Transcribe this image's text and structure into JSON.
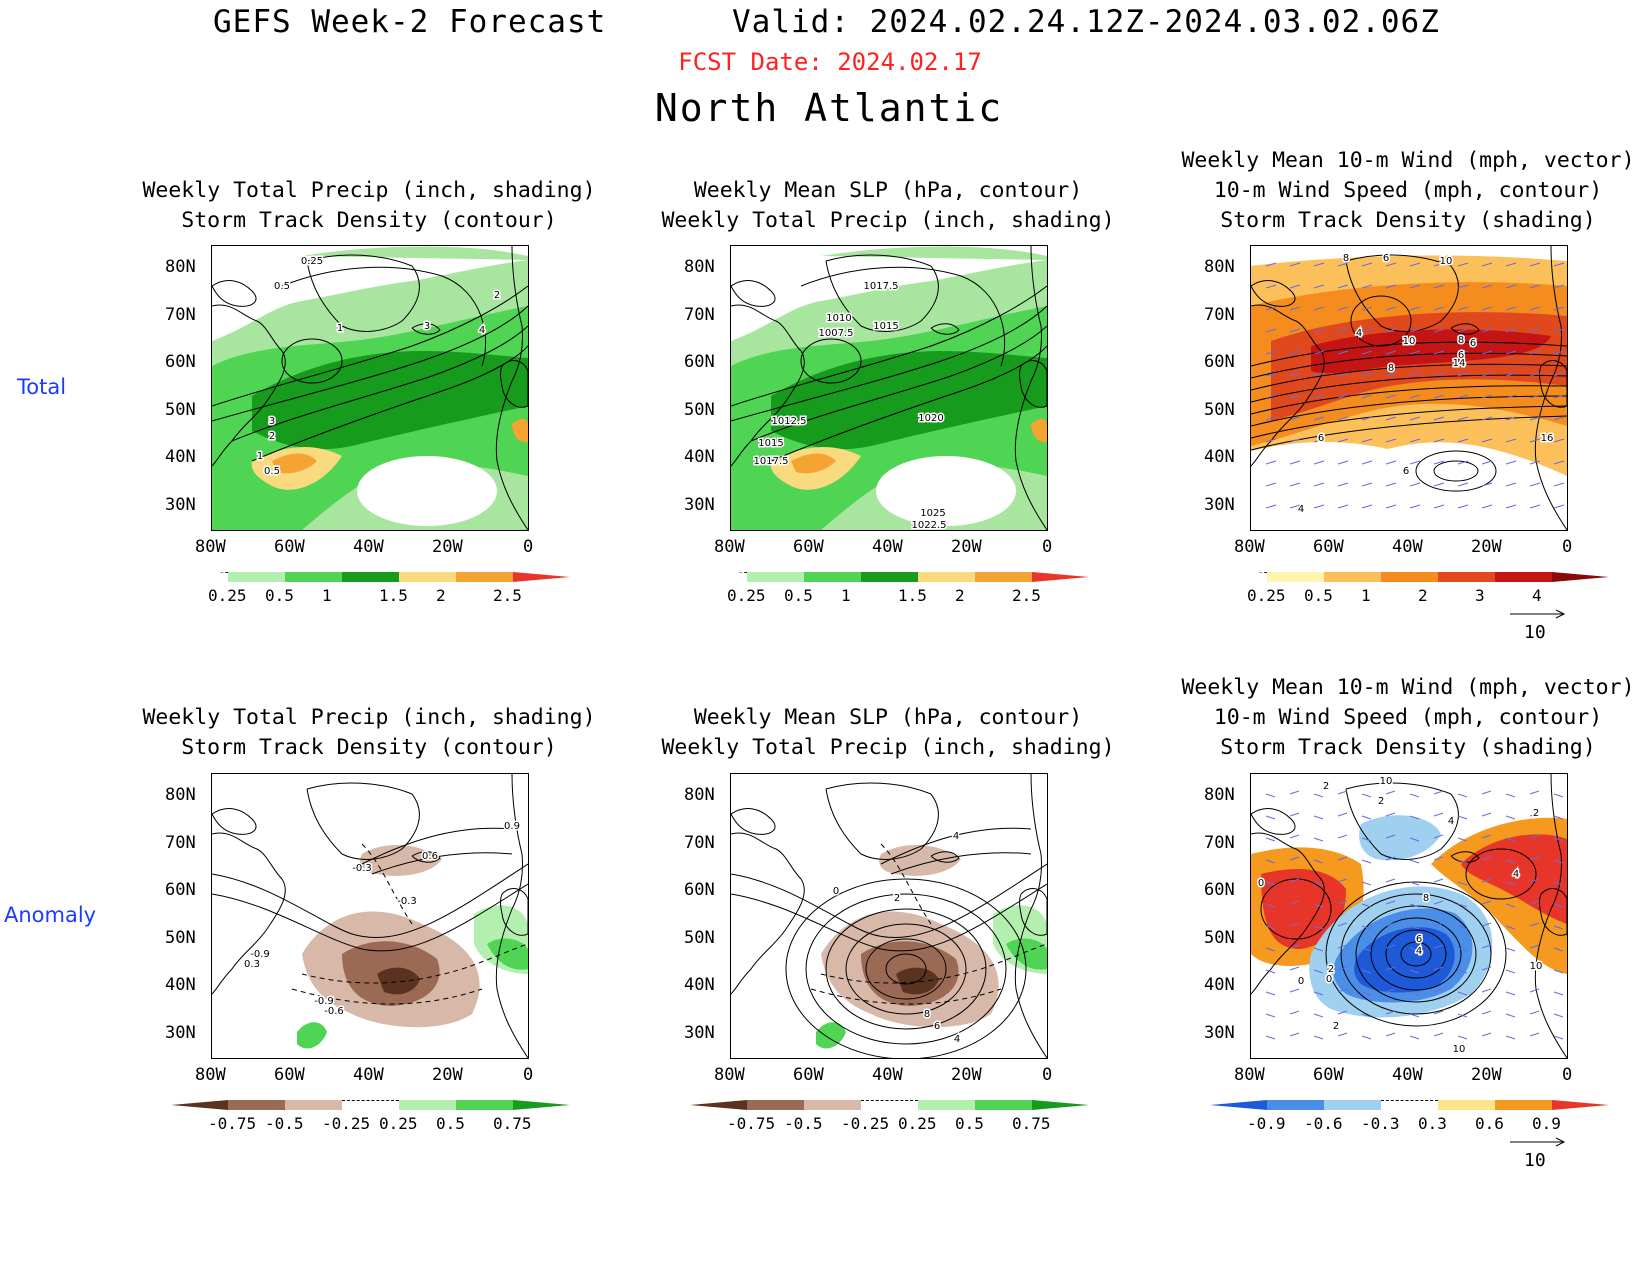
{
  "header": {
    "title": "GEFS Week-2 Forecast",
    "valid": "Valid: 2024.02.24.12Z-2024.03.02.06Z",
    "fcst_date": "FCST Date: 2024.02.17",
    "region": "North Atlantic"
  },
  "row_labels": {
    "total": "Total",
    "anomaly": "Anomaly"
  },
  "axes": {
    "lat_labels": [
      "80N",
      "70N",
      "60N",
      "50N",
      "40N",
      "30N"
    ],
    "lon_labels": [
      "80W",
      "60W",
      "40W",
      "20W",
      "0"
    ]
  },
  "panels": [
    {
      "id": "total-precip-storm",
      "title_lines": [
        "Weekly Total Precip (inch, shading)",
        "Storm Track Density (contour)"
      ],
      "contour_labels": [
        "0.25",
        "0.5",
        "1",
        "2",
        "3",
        "4",
        "3",
        "2",
        "1",
        "0.5"
      ],
      "colorbar": {
        "labels": [
          "0.25",
          "0.5",
          "1",
          "1.5",
          "2",
          "2.5"
        ],
        "colors": [
          "#ffffff",
          "#b3f0b0",
          "#4fd454",
          "#169b1c",
          "#f9da7f",
          "#f5a332",
          "#e8352a"
        ]
      }
    },
    {
      "id": "total-slp-precip",
      "title_lines": [
        "Weekly Mean SLP (hPa, contour)",
        "Weekly Total Precip (inch, shading)"
      ],
      "contour_labels": [
        "1017.5",
        "1010",
        "1015",
        "1007.5",
        "1012.5",
        "1015",
        "1017.5",
        "1020",
        "1025",
        "1022.5"
      ],
      "colorbar": {
        "labels": [
          "0.25",
          "0.5",
          "1",
          "1.5",
          "2",
          "2.5"
        ],
        "colors": [
          "#ffffff",
          "#b3f0b0",
          "#4fd454",
          "#169b1c",
          "#f9da7f",
          "#f5a332",
          "#e8352a"
        ]
      }
    },
    {
      "id": "total-wind-storm",
      "title_lines": [
        "Weekly Mean 10-m Wind (mph, vector)",
        "10-m Wind Speed (mph, contour)",
        "Storm Track Density (shading)"
      ],
      "contour_labels": [
        "8",
        "6",
        "10",
        "4",
        "10",
        "8",
        "6",
        "8",
        "14",
        "6",
        "6",
        "16",
        "6",
        "4"
      ],
      "colorbar": {
        "labels": [
          "0.25",
          "0.5",
          "1",
          "2",
          "3",
          "4"
        ],
        "colors": [
          "#ffffff",
          "#fff5b0",
          "#fbc05a",
          "#f58d1e",
          "#e0481e",
          "#c41414",
          "#8a0a0a"
        ]
      },
      "vector_ref": "10"
    },
    {
      "id": "anom-precip-storm",
      "title_lines": [
        "Weekly Total Precip (inch, shading)",
        "Storm Track Density (contour)"
      ],
      "contour_labels": [
        "0.9",
        "-0.3",
        "0.6",
        "-0.3",
        "-0.9",
        "0.3",
        "-0.9",
        "-0.6"
      ],
      "colorbar": {
        "labels": [
          "-0.75",
          "-0.5",
          "-0.25",
          "0.25",
          "0.5",
          "0.75"
        ],
        "colors": [
          "#5a3320",
          "#9b6a55",
          "#d8b8a8",
          "#ffffff",
          "#b3f0b0",
          "#4fd454",
          "#169b1c"
        ]
      }
    },
    {
      "id": "anom-slp-precip",
      "title_lines": [
        "Weekly Mean SLP (hPa, contour)",
        "Weekly Total Precip (inch, shading)"
      ],
      "contour_labels": [
        "4",
        "0",
        "2",
        "8",
        "6",
        "4"
      ],
      "colorbar": {
        "labels": [
          "-0.75",
          "-0.5",
          "-0.25",
          "0.25",
          "0.5",
          "0.75"
        ],
        "colors": [
          "#5a3320",
          "#9b6a55",
          "#d8b8a8",
          "#ffffff",
          "#b3f0b0",
          "#4fd454",
          "#169b1c"
        ]
      }
    },
    {
      "id": "anom-wind-storm",
      "title_lines": [
        "Weekly Mean 10-m Wind (mph, vector)",
        "10-m Wind Speed (mph, contour)",
        "Storm Track Density (shading)"
      ],
      "contour_labels": [
        "2",
        "10",
        "2",
        "4",
        "2",
        "0",
        "4",
        "8",
        "6",
        "4",
        "2",
        "0",
        "0",
        "10",
        "2",
        "10"
      ],
      "colorbar": {
        "labels": [
          "-0.9",
          "-0.6",
          "-0.3",
          "0.3",
          "0.6",
          "0.9"
        ],
        "colors": [
          "#1e5ad8",
          "#4a8ee8",
          "#9fd0f0",
          "#ffffff",
          "#fbe48a",
          "#f59a1e",
          "#e8352a"
        ]
      },
      "vector_ref": "10"
    }
  ]
}
